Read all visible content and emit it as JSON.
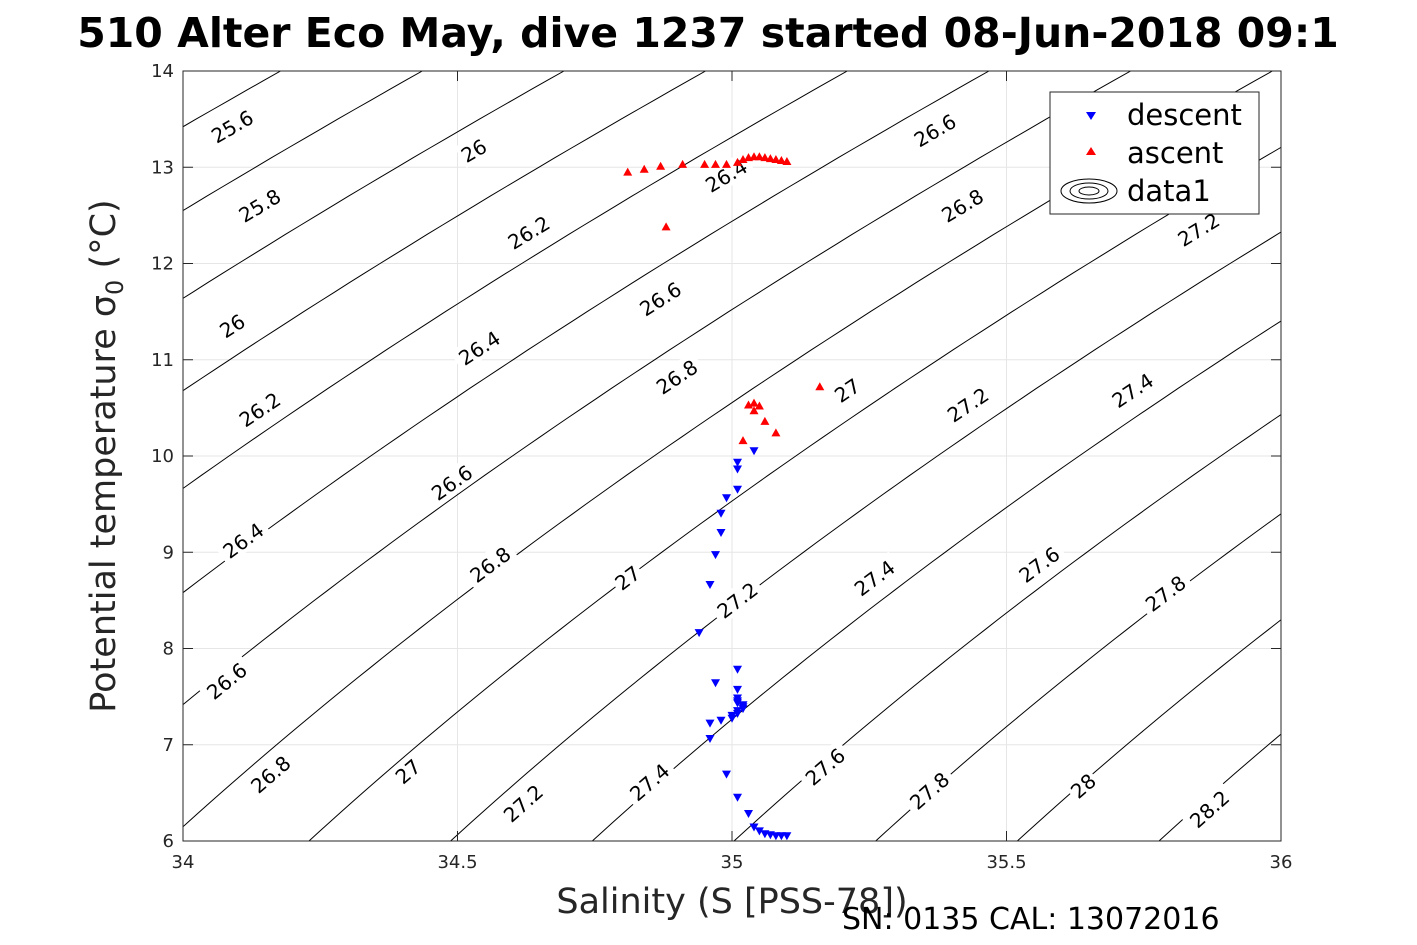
{
  "chart_data": {
    "type": "scatter",
    "title": "510 Alter Eco May, dive 1237 started 08-Jun-2018 09:1",
    "xlabel": "Salinity (S [PSS-78])",
    "ylabel": "Potential temperature σ",
    "ylabel_sub": "0",
    "ylabel_unit": " (°C)",
    "footer": "SN: 0135  CAL: 13072016",
    "xlim": [
      34,
      36
    ],
    "ylim": [
      6,
      14
    ],
    "xticks": [
      34,
      34.5,
      35,
      35.5,
      36
    ],
    "xtick_labels": [
      "34",
      "34.5",
      "35",
      "35.5",
      "36"
    ],
    "yticks": [
      6,
      7,
      8,
      9,
      10,
      11,
      12,
      13,
      14
    ],
    "ytick_labels": [
      "6",
      "7",
      "8",
      "9",
      "10",
      "11",
      "12",
      "13",
      "14"
    ],
    "grid": true,
    "legend_position": "top-right",
    "contour_levels": [
      "25.6",
      "25.8",
      "26",
      "26.2",
      "26.4",
      "26.6",
      "26.8",
      "27",
      "27.2",
      "27.4",
      "27.6",
      "27.8",
      "28",
      "28.2"
    ],
    "contour_labels": [
      {
        "text": "25.6",
        "x": 34.09,
        "y": 13.42
      },
      {
        "text": "25.8",
        "x": 34.14,
        "y": 12.6
      },
      {
        "text": "26",
        "x": 34.09,
        "y": 11.35
      },
      {
        "text": "26.2",
        "x": 34.14,
        "y": 10.48
      },
      {
        "text": "26.4",
        "x": 34.11,
        "y": 9.12
      },
      {
        "text": "26.6",
        "x": 34.08,
        "y": 7.66
      },
      {
        "text": "26.8",
        "x": 34.16,
        "y": 6.69
      },
      {
        "text": "26",
        "x": 34.53,
        "y": 13.17
      },
      {
        "text": "26.2",
        "x": 34.63,
        "y": 12.32
      },
      {
        "text": "26.4",
        "x": 34.54,
        "y": 11.12
      },
      {
        "text": "26.6",
        "x": 34.49,
        "y": 9.72
      },
      {
        "text": "26.8",
        "x": 34.56,
        "y": 8.87
      },
      {
        "text": "27",
        "x": 34.41,
        "y": 6.72
      },
      {
        "text": "27.2",
        "x": 34.62,
        "y": 6.39
      },
      {
        "text": "26.4",
        "x": 34.99,
        "y": 12.91
      },
      {
        "text": "26.6",
        "x": 34.87,
        "y": 11.63
      },
      {
        "text": "26.8",
        "x": 34.9,
        "y": 10.82
      },
      {
        "text": "27",
        "x": 34.81,
        "y": 8.73
      },
      {
        "text": "27.2",
        "x": 35.01,
        "y": 8.5
      },
      {
        "text": "27.4",
        "x": 34.85,
        "y": 6.61
      },
      {
        "text": "27",
        "x": 35.21,
        "y": 10.68
      },
      {
        "text": "27.2",
        "x": 35.43,
        "y": 10.53
      },
      {
        "text": "27.4",
        "x": 35.26,
        "y": 8.73
      },
      {
        "text": "27.6",
        "x": 35.17,
        "y": 6.77
      },
      {
        "text": "26.6",
        "x": 35.37,
        "y": 13.38
      },
      {
        "text": "26.8",
        "x": 35.42,
        "y": 12.6
      },
      {
        "text": "27.4",
        "x": 35.73,
        "y": 10.68
      },
      {
        "text": "27.6",
        "x": 35.56,
        "y": 8.87
      },
      {
        "text": "27.8",
        "x": 35.36,
        "y": 6.52
      },
      {
        "text": "27.8",
        "x": 35.79,
        "y": 8.57
      },
      {
        "text": "28",
        "x": 35.64,
        "y": 6.57
      },
      {
        "text": "28.2",
        "x": 35.87,
        "y": 6.33
      },
      {
        "text": "27.2",
        "x": 35.85,
        "y": 12.35
      }
    ],
    "series": [
      {
        "name": "descent",
        "color": "#0000ff",
        "marker": "triangle-down",
        "x": [
          35.01,
          35.01,
          35.04,
          35.01,
          34.99,
          34.98,
          34.98,
          34.97,
          34.96,
          34.94,
          35.01,
          34.97,
          35.01,
          35.01,
          35.01,
          35.01,
          35.02,
          35.02,
          35.02,
          35.01,
          35.01,
          35.0,
          35.0,
          34.98,
          34.96,
          34.96,
          34.99,
          35.01,
          35.03,
          35.04,
          35.05,
          35.06,
          35.07,
          35.08,
          35.09,
          35.1
        ],
        "y": [
          9.93,
          9.86,
          10.05,
          9.65,
          9.56,
          9.4,
          9.2,
          8.97,
          8.66,
          8.16,
          7.78,
          7.64,
          7.57,
          7.48,
          7.45,
          7.43,
          7.41,
          7.39,
          7.37,
          7.35,
          7.32,
          7.3,
          7.27,
          7.25,
          7.22,
          7.06,
          6.69,
          6.45,
          6.28,
          6.14,
          6.1,
          6.07,
          6.06,
          6.05,
          6.05,
          6.05
        ]
      },
      {
        "name": "ascent",
        "color": "#ff0000",
        "marker": "triangle-up",
        "x": [
          34.81,
          34.84,
          34.87,
          34.91,
          34.95,
          34.97,
          34.99,
          35.01,
          35.02,
          35.03,
          35.04,
          35.05,
          35.06,
          35.07,
          35.08,
          35.09,
          35.1,
          35.03,
          35.04,
          35.06,
          35.08,
          35.16,
          35.04,
          35.02,
          35.05,
          34.88
        ],
        "y": [
          12.95,
          12.98,
          13.01,
          13.03,
          13.03,
          13.03,
          13.03,
          13.05,
          13.08,
          13.1,
          13.11,
          13.11,
          13.1,
          13.09,
          13.08,
          13.07,
          13.06,
          10.53,
          10.47,
          10.36,
          10.24,
          10.72,
          10.55,
          10.16,
          10.52,
          12.38
        ]
      },
      {
        "name": "data1",
        "marker": "contour"
      }
    ]
  }
}
